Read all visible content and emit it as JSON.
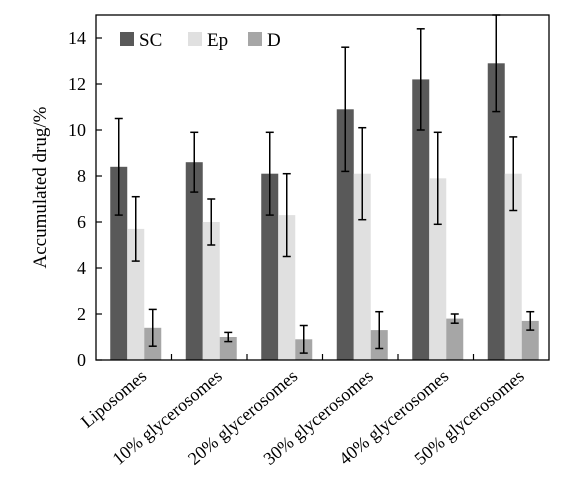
{
  "chart_data": {
    "type": "bar",
    "title": "",
    "xlabel": "",
    "ylabel": "Accumulated drug/%",
    "ylim": [
      0,
      15
    ],
    "yticks": [
      0,
      2,
      4,
      6,
      8,
      10,
      12,
      14
    ],
    "grid": false,
    "legend_position": "top-left",
    "categories": [
      "Liposomes",
      "10% glycerosomes",
      "20% glycerosomes",
      "30% glycerosomes",
      "40% glycerosomes",
      "50% glycerosomes"
    ],
    "series": [
      {
        "name": "SC",
        "color": "#595959",
        "values": [
          8.4,
          8.6,
          8.1,
          10.9,
          12.2,
          12.9
        ],
        "errors": [
          2.1,
          1.3,
          1.8,
          2.7,
          2.2,
          2.1
        ]
      },
      {
        "name": "Ep",
        "color": "#e0e0e0",
        "values": [
          5.7,
          6.0,
          6.3,
          8.1,
          7.9,
          8.1
        ],
        "errors": [
          1.4,
          1.0,
          1.8,
          2.0,
          2.0,
          1.6
        ]
      },
      {
        "name": "D",
        "color": "#a6a6a6",
        "values": [
          1.4,
          1.0,
          0.9,
          1.3,
          1.8,
          1.7
        ],
        "errors": [
          0.8,
          0.2,
          0.6,
          0.8,
          0.2,
          0.4
        ]
      }
    ]
  }
}
